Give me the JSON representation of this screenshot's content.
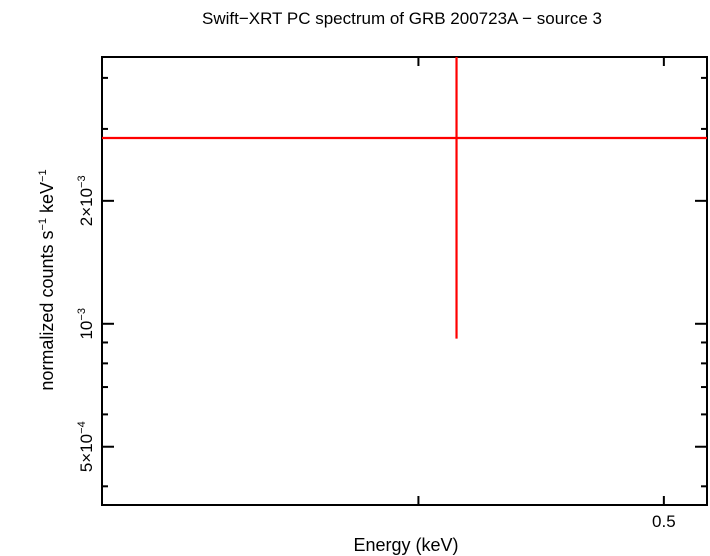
{
  "chart_data": {
    "type": "scatter",
    "title": "Swift−XRT PC spectrum of GRB 200723A − source 3",
    "xlabel": "Energy (keV)",
    "ylabel": {
      "text": "normalized counts s",
      "sup1": "−1",
      "mid": " keV",
      "sup2": "−1"
    },
    "x_scale": "log",
    "y_scale": "log",
    "xlim": [
      0.3,
      0.52
    ],
    "ylim": [
      0.00036,
      0.0045
    ],
    "x_ticks": [
      {
        "value": 0.4,
        "label": ""
      },
      {
        "value": 0.5,
        "label": "0.5"
      }
    ],
    "y_major_ticks": [
      {
        "value": 0.0005,
        "base": "5×10",
        "exp": "−4"
      },
      {
        "value": 0.001,
        "base": "10",
        "exp": "−3"
      },
      {
        "value": 0.002,
        "base": "2×10",
        "exp": "−3"
      }
    ],
    "y_minor_ticks": [
      0.0004,
      0.0006,
      0.0007,
      0.0008,
      0.0009,
      0.003,
      0.004
    ],
    "series": [
      {
        "color": "#ff0000",
        "points": [
          {
            "x": 0.4141,
            "y": 0.00285,
            "x_lo": 0.3,
            "x_hi": 0.52,
            "y_lo": 0.00092,
            "y_hi": 0.0045
          }
        ]
      }
    ]
  }
}
